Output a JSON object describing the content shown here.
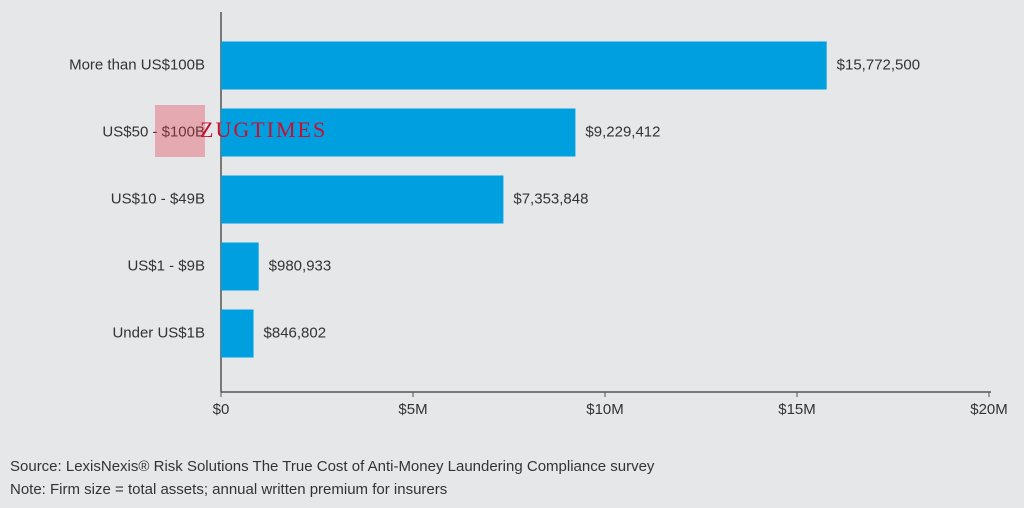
{
  "chart_data": {
    "type": "bar",
    "orientation": "horizontal",
    "categories": [
      "More than US$100B",
      "US$50 - $100B",
      "US$10 - $49B",
      "US$1 - $9B",
      "Under US$1B"
    ],
    "values": [
      15772500,
      9229412,
      7353848,
      980933,
      846802
    ],
    "value_labels": [
      "$15,772,500",
      "$9,229,412",
      "$7,353,848",
      "$980,933",
      "$846,802"
    ],
    "color": "#009fdf",
    "xlim": [
      0,
      20000000
    ],
    "xticks": [
      {
        "value": 0,
        "label": "$0"
      },
      {
        "value": 5000000,
        "label": "$5M"
      },
      {
        "value": 10000000,
        "label": "$10M"
      },
      {
        "value": 15000000,
        "label": "$15M"
      },
      {
        "value": 20000000,
        "label": "$20M"
      }
    ],
    "grid": false,
    "source": "Source: LexisNexis® Risk Solutions The True Cost of Anti-Money Laundering Compliance survey",
    "note": "Note: Firm size = total assets; annual written premium for insurers",
    "watermark": "ZUGTIMES"
  }
}
